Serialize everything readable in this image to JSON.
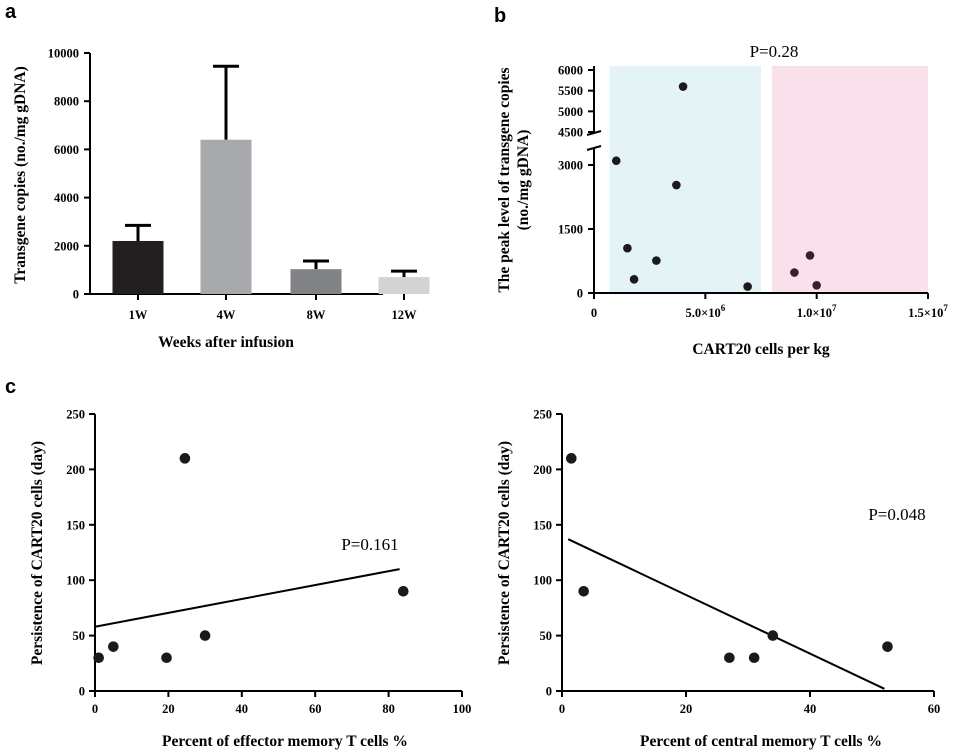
{
  "colors": {
    "axis": "#000000",
    "bar_1w": "#231f20",
    "bar_4w": "#a7a9ac",
    "bar_8w": "#808285",
    "bar_12w": "#d1d3d4",
    "band_low": "#e4f4f6",
    "band_high": "#f8e1ea",
    "points": "#1a1a1a",
    "points_high": "#3a1f2b"
  },
  "chart_data": [
    {
      "panel": "a",
      "type": "bar",
      "xlabel": "Weeks after infusion",
      "ylabel": "Transgene copies (no./mg  gDNA)",
      "categories": [
        "1W",
        "4W",
        "8W",
        "12W"
      ],
      "values": [
        2200,
        6400,
        1030,
        700
      ],
      "error_upper": [
        2850,
        9450,
        1370,
        950
      ],
      "ylim": [
        0,
        10000
      ],
      "yticks": [
        "0",
        "2000",
        "4000",
        "6000",
        "8000",
        "10000"
      ],
      "bar_colors": [
        "#231f20",
        "#a7a9ac",
        "#808285",
        "#d1d3d4"
      ]
    },
    {
      "panel": "b",
      "type": "scatter",
      "xlabel": "CART20 cells per kg",
      "ylabel": "The peak level of transgene copies (no./mg  gDNA)",
      "annotation": "P=0.28",
      "xlim": [
        0,
        15000000
      ],
      "xticks": [
        {
          "value": 0,
          "base": "0",
          "exp": ""
        },
        {
          "value": 5000000,
          "base": "5.0×10",
          "exp": "6"
        },
        {
          "value": 10000000,
          "base": "1.0×10",
          "exp": "7"
        },
        {
          "value": 15000000,
          "base": "1.5×10",
          "exp": "7"
        }
      ],
      "ylim_lower": [
        0,
        3500
      ],
      "yticks_lower": [
        "0",
        "1500",
        "3000"
      ],
      "ylim_upper": [
        4500,
        6000
      ],
      "yticks_upper": [
        "4500",
        "5000",
        "5500",
        "6000"
      ],
      "shaded_regions": [
        [
          700000,
          7500000
        ],
        [
          8000000,
          15000000
        ]
      ],
      "points": [
        {
          "x": 1000000,
          "y": 3100
        },
        {
          "x": 1500000,
          "y": 1050
        },
        {
          "x": 1800000,
          "y": 320
        },
        {
          "x": 2800000,
          "y": 760
        },
        {
          "x": 3700000,
          "y": 2530
        },
        {
          "x": 4000000,
          "y": 5600
        },
        {
          "x": 6900000,
          "y": 150
        },
        {
          "x": 9000000,
          "y": 480
        },
        {
          "x": 9700000,
          "y": 880
        },
        {
          "x": 10000000,
          "y": 180
        }
      ]
    },
    {
      "panel": "c",
      "type": "scatter",
      "xlabel": "Percent of effector memory T cells %",
      "ylabel": "Persistence of CART20 cells (day)",
      "annotation": "P=0.161",
      "xlim": [
        0,
        100
      ],
      "xticks": [
        "0",
        "20",
        "40",
        "60",
        "80",
        "100"
      ],
      "ylim": [
        0,
        250
      ],
      "yticks": [
        "0",
        "50",
        "100",
        "150",
        "200",
        "250"
      ],
      "points": [
        {
          "x": 1,
          "y": 30
        },
        {
          "x": 5,
          "y": 40
        },
        {
          "x": 19.5,
          "y": 30
        },
        {
          "x": 24.5,
          "y": 210
        },
        {
          "x": 30,
          "y": 50
        },
        {
          "x": 84,
          "y": 90
        }
      ],
      "fit_line": [
        {
          "x": 0,
          "y": 58
        },
        {
          "x": 83,
          "y": 110
        }
      ]
    },
    {
      "panel": "c",
      "type": "scatter",
      "xlabel": "Percent of central memory T cells %",
      "ylabel": "Persistence of CART20 cells (day)",
      "annotation": "P=0.048",
      "xlim": [
        0,
        60
      ],
      "xticks": [
        "0",
        "20",
        "40",
        "60"
      ],
      "ylim": [
        0,
        250
      ],
      "yticks": [
        "0",
        "50",
        "100",
        "150",
        "200",
        "250"
      ],
      "points": [
        {
          "x": 1.5,
          "y": 210
        },
        {
          "x": 3.5,
          "y": 90
        },
        {
          "x": 27,
          "y": 30
        },
        {
          "x": 31,
          "y": 30
        },
        {
          "x": 34,
          "y": 50
        },
        {
          "x": 52.5,
          "y": 40
        }
      ],
      "fit_line": [
        {
          "x": 1,
          "y": 137
        },
        {
          "x": 52,
          "y": 2
        }
      ]
    }
  ],
  "panel_labels": [
    "a",
    "b",
    "c"
  ]
}
